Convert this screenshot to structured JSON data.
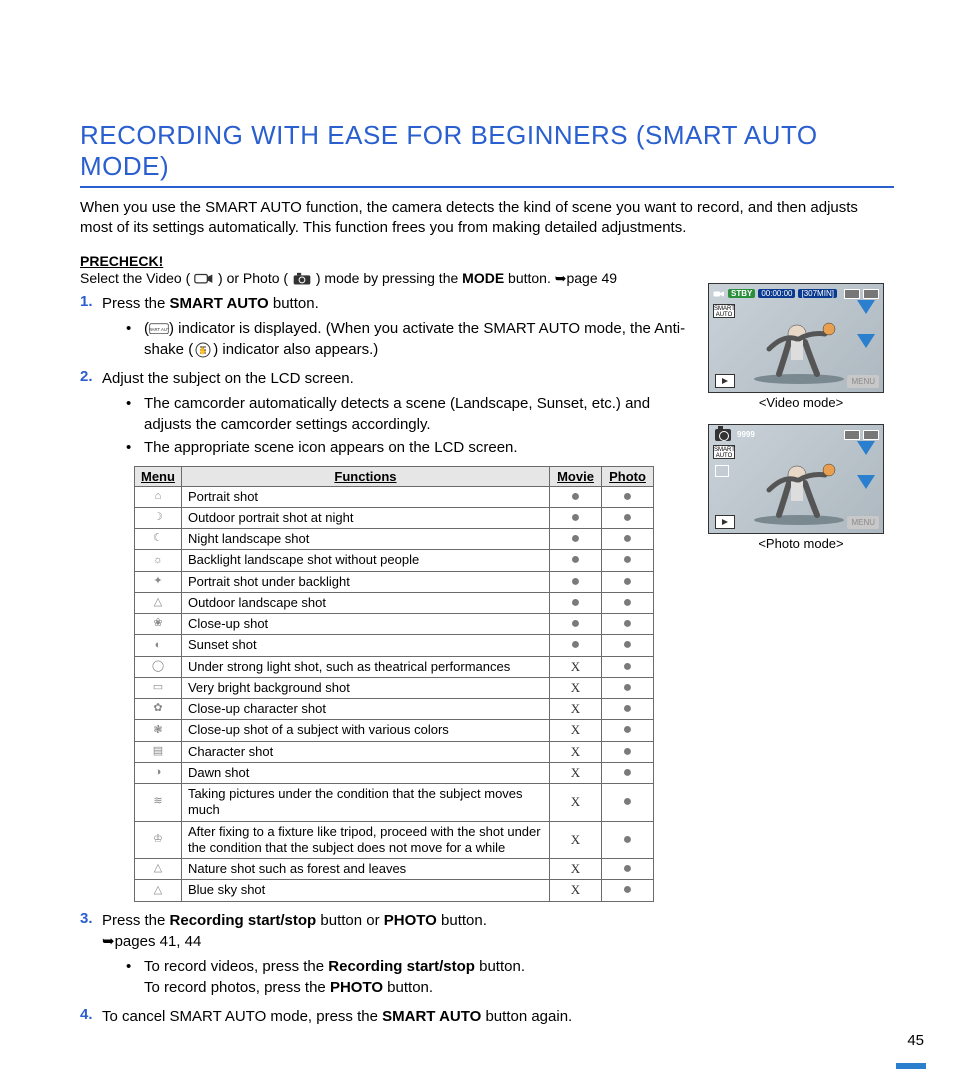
{
  "title": "RECORDING WITH EASE FOR BEGINNERS (SMART AUTO MODE)",
  "intro": "When you use the SMART AUTO function, the camera detects the kind of scene you want to record, and then adjusts most of its settings automatically. This function frees you from making detailed adjustments.",
  "precheck": {
    "label": "PRECHECK!",
    "prefix": "Select the Video (",
    "mid1": ") or Photo (",
    "mid2": ") mode by pressing the ",
    "bold": "MODE",
    "suffix": " button. ➥page 49"
  },
  "step1": {
    "num": "1.",
    "t1": "Press the ",
    "b1": "SMART AUTO",
    "t2": " button.",
    "sub_pre": "(",
    "sub_post": ") indicator is displayed. (When you activate the SMART AUTO mode, the Anti-shake (",
    "sub_end": ") indicator also appears.)"
  },
  "step2": {
    "num": "2.",
    "text": "Adjust the subject on the LCD screen.",
    "sub1": "The camcorder automatically detects a scene (Landscape, Sunset, etc.) and adjusts the camcorder settings accordingly.",
    "sub2": "The appropriate scene icon appears on the LCD screen."
  },
  "table": {
    "headers": {
      "menu": "Menu",
      "func": "Functions",
      "movie": "Movie",
      "photo": "Photo"
    },
    "rows": [
      {
        "func": "Portrait shot",
        "movie": "●",
        "photo": "●"
      },
      {
        "func": "Outdoor portrait shot at night",
        "movie": "●",
        "photo": "●"
      },
      {
        "func": "Night landscape shot",
        "movie": "●",
        "photo": "●"
      },
      {
        "func": "Backlight landscape shot without people",
        "movie": "●",
        "photo": "●"
      },
      {
        "func": "Portrait shot under backlight",
        "movie": "●",
        "photo": "●"
      },
      {
        "func": "Outdoor landscape shot",
        "movie": "●",
        "photo": "●"
      },
      {
        "func": "Close-up shot",
        "movie": "●",
        "photo": "●"
      },
      {
        "func": "Sunset shot",
        "movie": "●",
        "photo": "●"
      },
      {
        "func": "Under strong light shot, such as theatrical performances",
        "movie": "X",
        "photo": "●"
      },
      {
        "func": "Very bright background shot",
        "movie": "X",
        "photo": "●"
      },
      {
        "func": "Close-up character shot",
        "movie": "X",
        "photo": "●"
      },
      {
        "func": "Close-up shot of a subject with various colors",
        "movie": "X",
        "photo": "●"
      },
      {
        "func": "Character shot",
        "movie": "X",
        "photo": "●"
      },
      {
        "func": "Dawn shot",
        "movie": "X",
        "photo": "●"
      },
      {
        "func": "Taking pictures under the condition that the subject moves much",
        "movie": "X",
        "photo": "●"
      },
      {
        "func": "After fixing to a fixture like tripod, proceed with the shot under the condition that the subject does not move for a while",
        "movie": "X",
        "photo": "●"
      },
      {
        "func": "Nature shot such as forest and leaves",
        "movie": "X",
        "photo": "●"
      },
      {
        "func": "Blue sky shot",
        "movie": "X",
        "photo": "●"
      }
    ],
    "icons": [
      "⌂",
      "☽",
      "☾",
      "☼",
      "✦",
      "△",
      "❀",
      "◐",
      "◯",
      "▭",
      "✿",
      "❃",
      "▤",
      "◑",
      "≋",
      "♔",
      "△",
      "△"
    ]
  },
  "step3": {
    "num": "3.",
    "t1": "Press the ",
    "b1": "Recording start/stop",
    "t2": " button or ",
    "b2": "PHOTO",
    "t3": " button.",
    "ref": "➥pages 41, 44",
    "sub_a": "To record videos, press the ",
    "sub_b": "Recording start/stop",
    "sub_c": " button.",
    "sub_d": "To record photos, press the ",
    "sub_e": "PHOTO",
    "sub_f": " button."
  },
  "step4": {
    "num": "4.",
    "t1": "To cancel SMART AUTO mode, press the ",
    "b1": "SMART AUTO",
    "t2": " button again."
  },
  "preview": {
    "stby": "STBY",
    "time": "00:00:00",
    "remain": "[307MIN]",
    "count": "9999",
    "menu": "MENU",
    "video_caption": "<Video mode>",
    "photo_caption": "<Photo mode>"
  },
  "page_number": "45"
}
